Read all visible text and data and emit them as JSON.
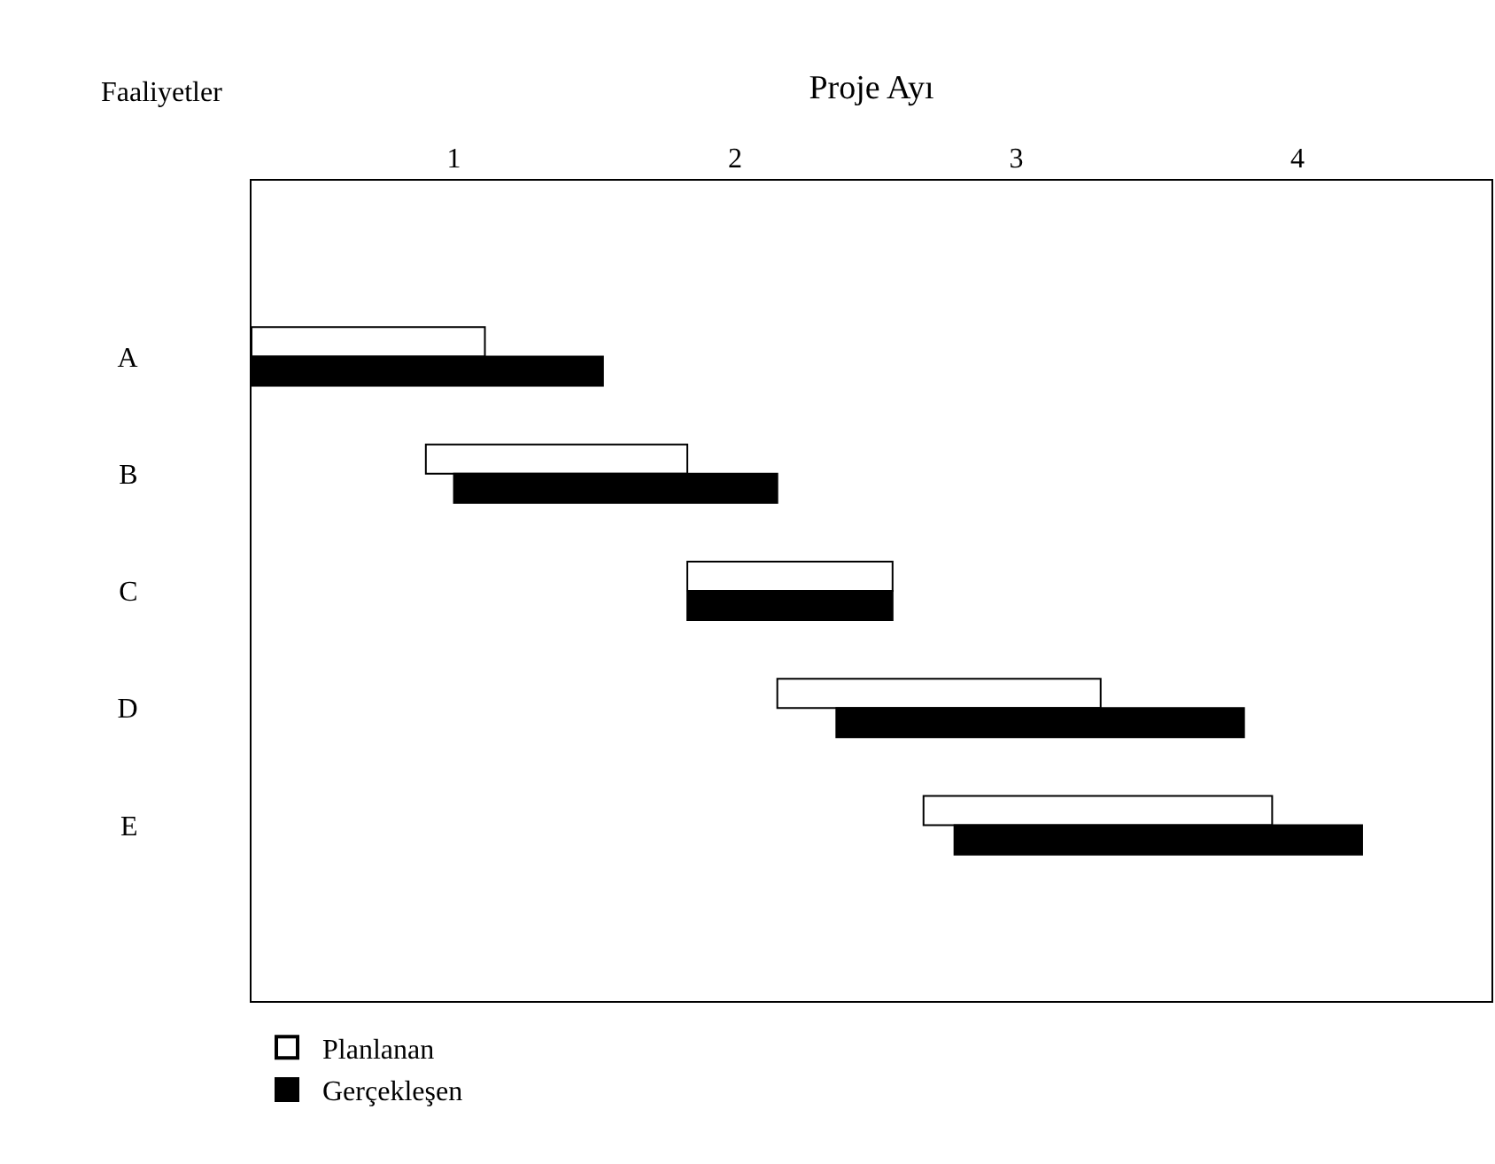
{
  "chart_data": {
    "type": "bar",
    "orientation": "horizontal",
    "xlabel": "Proje Ayı",
    "ylabel": "Faaliyetler",
    "categories": [
      "A",
      "B",
      "C",
      "D",
      "E"
    ],
    "xlim": [
      0.28,
      4.69
    ],
    "xticks": [
      1,
      2,
      3,
      4
    ],
    "series": [
      {
        "name": "Planlanan",
        "color": "#ffffff",
        "base": [
          0.28,
          0.9,
          1.83,
          2.15,
          2.67
        ],
        "values": [
          0.83,
          0.93,
          0.73,
          1.15,
          1.24
        ]
      },
      {
        "name": "Gerçekleşen",
        "color": "#000000",
        "base": [
          0.28,
          1.0,
          1.83,
          2.36,
          2.78
        ],
        "values": [
          1.25,
          1.15,
          0.73,
          1.45,
          1.45
        ]
      }
    ],
    "legend": "bottom left"
  }
}
